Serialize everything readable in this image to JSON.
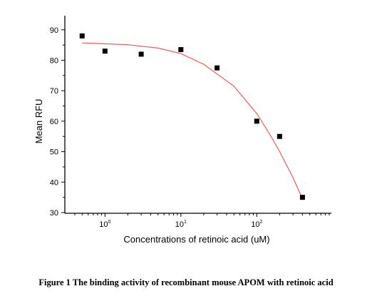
{
  "caption": "Figure 1 The binding activity of recombinant mouse APOM with retinoic acid",
  "chart_data": {
    "type": "scatter",
    "xlabel": "Concentrations of retinoic acid (uM)",
    "ylabel": "Mean RFU",
    "x_scale": "log",
    "xlim": [
      0.3,
      600
    ],
    "ylim": [
      30,
      95
    ],
    "y_ticks": [
      30,
      40,
      50,
      60,
      70,
      80,
      90
    ],
    "x_ticks": [
      {
        "value": 1,
        "base": "10",
        "exp": "0"
      },
      {
        "value": 10,
        "base": "10",
        "exp": "1"
      },
      {
        "value": 100,
        "base": "10",
        "exp": "2"
      }
    ],
    "points": [
      {
        "x": 0.5,
        "y": 88
      },
      {
        "x": 1,
        "y": 83
      },
      {
        "x": 3,
        "y": 82
      },
      {
        "x": 10,
        "y": 83.5
      },
      {
        "x": 30,
        "y": 77.5
      },
      {
        "x": 100,
        "y": 60
      },
      {
        "x": 200,
        "y": 55
      },
      {
        "x": 400,
        "y": 35
      }
    ],
    "fit": {
      "type": "line",
      "x": [
        0.5,
        1,
        2,
        5,
        10,
        20,
        50,
        100,
        150,
        200,
        300,
        400
      ],
      "y": [
        85.7,
        85.4,
        85.1,
        84,
        82.2,
        78.7,
        71.5,
        62.5,
        55.5,
        50,
        41.5,
        34.5
      ]
    },
    "colors": {
      "fit": "#ee5a5a",
      "points": "#000000"
    },
    "grid": false
  }
}
